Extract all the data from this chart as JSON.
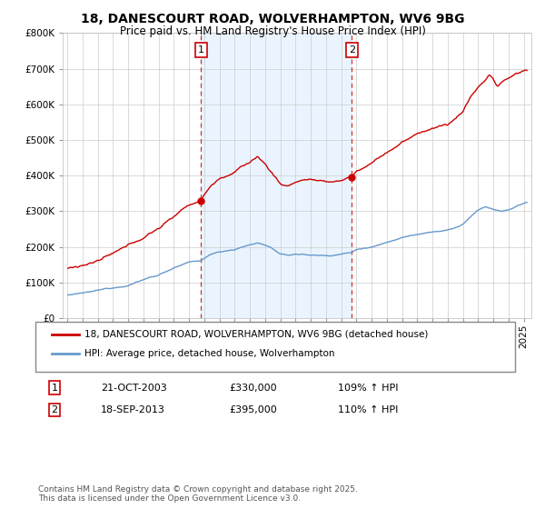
{
  "title": "18, DANESCOURT ROAD, WOLVERHAMPTON, WV6 9BG",
  "subtitle": "Price paid vs. HM Land Registry's House Price Index (HPI)",
  "sale1_date": "21-OCT-2003",
  "sale1_price": 330000,
  "sale1_pct": "109% ↑ HPI",
  "sale2_date": "18-SEP-2013",
  "sale2_price": 395000,
  "sale2_pct": "110% ↑ HPI",
  "red_color": "#cc0000",
  "blue_color": "#6699cc",
  "shade_color": "#ddeeff",
  "legend1": "18, DANESCOURT ROAD, WOLVERHAMPTON, WV6 9BG (detached house)",
  "legend2": "HPI: Average price, detached house, Wolverhampton",
  "footer1": "Contains HM Land Registry data © Crown copyright and database right 2025.",
  "footer2": "This data is licensed under the Open Government Licence v3.0.",
  "ylim_max": 800000,
  "background_color": "#ffffff"
}
